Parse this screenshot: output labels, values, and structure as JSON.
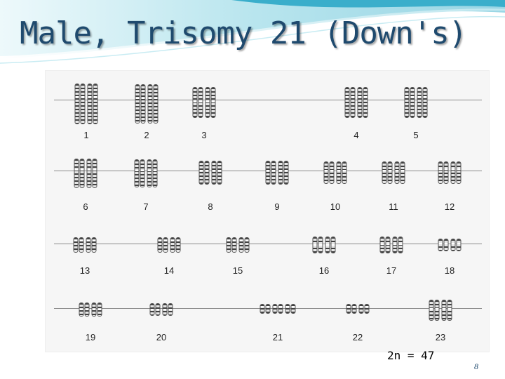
{
  "slide": {
    "title": "Male, Trisomy 21 (Down's)",
    "formula": "2n = 47",
    "slide_number": "8",
    "accent_color": "#1f4a6e",
    "swoosh_color": "#5bc3d9"
  },
  "karyotype": {
    "rows": [
      {
        "chromosomes": [
          {
            "label": "1",
            "copies": 2
          },
          {
            "label": "2",
            "copies": 2
          },
          {
            "label": "3",
            "copies": 2
          },
          {
            "label": "4",
            "copies": 2
          },
          {
            "label": "5",
            "copies": 2
          }
        ]
      },
      {
        "chromosomes": [
          {
            "label": "6",
            "copies": 2
          },
          {
            "label": "7",
            "copies": 2
          },
          {
            "label": "8",
            "copies": 2
          },
          {
            "label": "9",
            "copies": 2
          },
          {
            "label": "10",
            "copies": 2
          },
          {
            "label": "11",
            "copies": 2
          },
          {
            "label": "12",
            "copies": 2
          }
        ]
      },
      {
        "chromosomes": [
          {
            "label": "13",
            "copies": 2
          },
          {
            "label": "14",
            "copies": 2
          },
          {
            "label": "15",
            "copies": 2
          },
          {
            "label": "16",
            "copies": 2
          },
          {
            "label": "17",
            "copies": 2
          },
          {
            "label": "18",
            "copies": 2
          }
        ]
      },
      {
        "chromosomes": [
          {
            "label": "19",
            "copies": 2
          },
          {
            "label": "20",
            "copies": 2
          },
          {
            "label": "21",
            "copies": 3
          },
          {
            "label": "22",
            "copies": 2
          },
          {
            "label": "23",
            "copies": 2
          }
        ]
      }
    ]
  }
}
